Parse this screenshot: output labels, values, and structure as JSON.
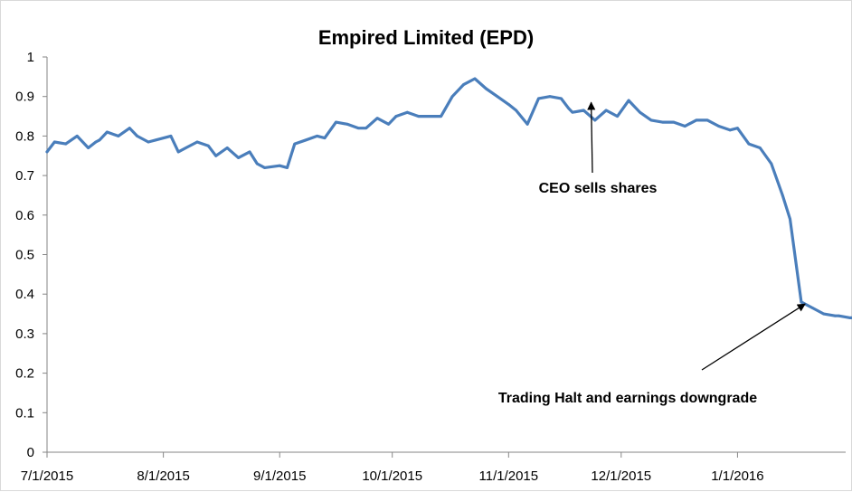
{
  "chart_data": {
    "type": "line",
    "title": "Empired Limited (EPD)",
    "xlabel": "",
    "ylabel": "",
    "ylim": [
      0,
      1
    ],
    "yticks": [
      "0",
      "0.1",
      "0.2",
      "0.3",
      "0.4",
      "0.5",
      "0.6",
      "0.7",
      "0.8",
      "0.9",
      "1"
    ],
    "xticks": [
      "7/1/2015",
      "8/1/2015",
      "9/1/2015",
      "10/1/2015",
      "11/1/2015",
      "12/1/2015",
      "1/1/2016"
    ],
    "grid": false,
    "legend": "none",
    "line_color": "#4a7ebb",
    "series": [
      {
        "x": [
          "2015-07-01",
          "2015-07-03",
          "2015-07-06",
          "2015-07-09",
          "2015-07-12",
          "2015-07-14",
          "2015-07-15",
          "2015-07-17",
          "2015-07-20",
          "2015-07-23",
          "2015-07-25",
          "2015-07-28",
          "2015-07-30",
          "2015-08-03",
          "2015-08-05",
          "2015-08-07",
          "2015-08-10",
          "2015-08-13",
          "2015-08-15",
          "2015-08-18",
          "2015-08-21",
          "2015-08-24",
          "2015-08-26",
          "2015-08-28",
          "2015-09-01",
          "2015-09-03",
          "2015-09-05",
          "2015-09-08",
          "2015-09-11",
          "2015-09-13",
          "2015-09-16",
          "2015-09-19",
          "2015-09-22",
          "2015-09-24",
          "2015-09-27",
          "2015-09-30",
          "2015-10-02",
          "2015-10-05",
          "2015-10-08",
          "2015-10-11",
          "2015-10-14",
          "2015-10-17",
          "2015-10-20",
          "2015-10-23",
          "2015-10-26",
          "2015-10-29",
          "2015-11-01",
          "2015-11-03",
          "2015-11-06",
          "2015-11-09",
          "2015-11-12",
          "2015-11-15",
          "2015-11-17",
          "2015-11-18",
          "2015-11-21",
          "2015-11-24",
          "2015-11-27",
          "2015-11-30",
          "2015-12-03",
          "2015-12-06",
          "2015-12-09",
          "2015-12-12",
          "2015-12-15",
          "2015-12-18",
          "2015-12-21",
          "2015-12-24",
          "2015-12-27",
          "2015-12-30",
          "2016-01-01",
          "2016-01-04",
          "2016-01-07",
          "2016-01-10",
          "2016-01-13",
          "2016-01-15",
          "2016-01-18",
          "2016-01-21",
          "2016-01-24",
          "2016-01-27",
          "2016-01-28",
          "2016-01-31",
          "2016-02-02"
        ],
        "values": [
          0.76,
          0.785,
          0.78,
          0.8,
          0.77,
          0.785,
          0.79,
          0.81,
          0.8,
          0.82,
          0.8,
          0.785,
          0.79,
          0.8,
          0.76,
          0.77,
          0.785,
          0.775,
          0.75,
          0.77,
          0.745,
          0.76,
          0.73,
          0.72,
          0.725,
          0.72,
          0.78,
          0.79,
          0.8,
          0.795,
          0.835,
          0.83,
          0.82,
          0.82,
          0.845,
          0.83,
          0.85,
          0.86,
          0.85,
          0.85,
          0.85,
          0.9,
          0.93,
          0.945,
          0.92,
          0.9,
          0.88,
          0.865,
          0.83,
          0.895,
          0.9,
          0.895,
          0.87,
          0.86,
          0.865,
          0.84,
          0.865,
          0.85,
          0.89,
          0.86,
          0.84,
          0.835,
          0.835,
          0.825,
          0.84,
          0.84,
          0.825,
          0.815,
          0.82,
          0.78,
          0.77,
          0.73,
          0.65,
          0.59,
          0.38,
          0.365,
          0.35,
          0.345,
          0.345,
          0.34,
          0.34
        ]
      }
    ],
    "annotations": [
      {
        "text": "CEO sells shares",
        "date": "2015-11-23",
        "value": 0.885
      },
      {
        "text": "Trading Halt and earnings downgrade",
        "date": "2016-01-19",
        "value": 0.375
      }
    ]
  }
}
